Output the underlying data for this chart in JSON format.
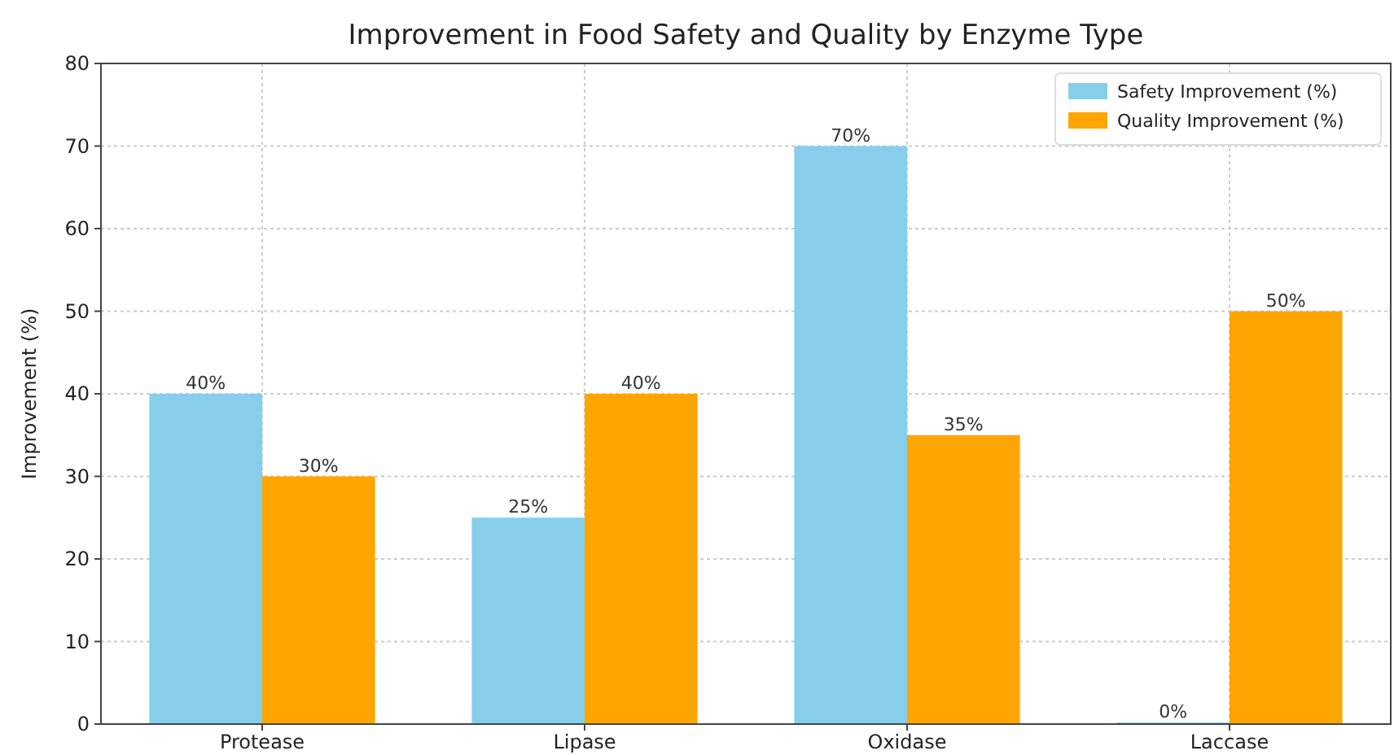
{
  "chart_data": {
    "type": "bar",
    "title": "Improvement in Food Safety and Quality by Enzyme Type",
    "ylabel": "Improvement (%)",
    "categories": [
      "Protease",
      "Lipase",
      "Oxidase",
      "Laccase"
    ],
    "series": [
      {
        "name": "Safety Improvement (%)",
        "color": "#87ceeb",
        "values": [
          40,
          25,
          70,
          0
        ],
        "value_labels": [
          "40%",
          "25%",
          "70%",
          "0%"
        ]
      },
      {
        "name": "Quality Improvement (%)",
        "color": "#ffa500",
        "values": [
          30,
          40,
          35,
          50
        ],
        "value_labels": [
          "30%",
          "40%",
          "35%",
          "50%"
        ]
      }
    ],
    "ylim": [
      0,
      80
    ],
    "yticks": [
      0,
      10,
      20,
      30,
      40,
      50,
      60,
      70,
      80
    ],
    "grid": true,
    "legend": "top right"
  }
}
